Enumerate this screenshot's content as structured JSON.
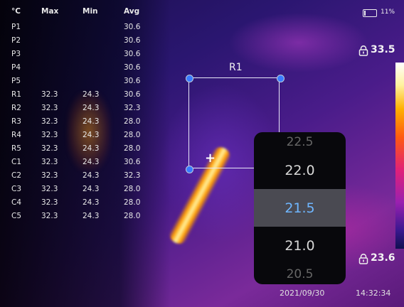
{
  "table": {
    "headers": [
      "°C",
      "Max",
      "Min",
      "Avg"
    ],
    "rows": [
      {
        "id": "P1",
        "max": "",
        "min": "",
        "avg": "30.6"
      },
      {
        "id": "P2",
        "max": "",
        "min": "",
        "avg": "30.6"
      },
      {
        "id": "P3",
        "max": "",
        "min": "",
        "avg": "30.6"
      },
      {
        "id": "P4",
        "max": "",
        "min": "",
        "avg": "30.6"
      },
      {
        "id": "P5",
        "max": "",
        "min": "",
        "avg": "30.6"
      },
      {
        "id": "R1",
        "max": "32.3",
        "min": "24.3",
        "avg": "30.6"
      },
      {
        "id": "R2",
        "max": "32.3",
        "min": "24.3",
        "avg": "32.3"
      },
      {
        "id": "R3",
        "max": "32.3",
        "min": "24.3",
        "avg": "28.0"
      },
      {
        "id": "R4",
        "max": "32.3",
        "min": "24.3",
        "avg": "28.0"
      },
      {
        "id": "R5",
        "max": "32.3",
        "min": "24.3",
        "avg": "28.0"
      },
      {
        "id": "C1",
        "max": "32.3",
        "min": "24.3",
        "avg": "30.6"
      },
      {
        "id": "C2",
        "max": "32.3",
        "min": "24.3",
        "avg": "32.3"
      },
      {
        "id": "C3",
        "max": "32.3",
        "min": "24.3",
        "avg": "28.0"
      },
      {
        "id": "C4",
        "max": "32.3",
        "min": "24.3",
        "avg": "28.0"
      },
      {
        "id": "C5",
        "max": "32.3",
        "min": "24.3",
        "avg": "28.0"
      }
    ]
  },
  "roi": {
    "label": "R1"
  },
  "picker": {
    "items": [
      "22.5",
      "22.0",
      "21.5",
      "21.0",
      "20.5"
    ],
    "selected": "21.5"
  },
  "status": {
    "battery_label": "11%",
    "battery_level": 0.11,
    "temp_max": "33.5",
    "temp_min": "23.6"
  },
  "footer": {
    "date": "2021/09/30",
    "time": "14:32:34"
  },
  "icons": {
    "lock": "lock-icon",
    "battery": "battery-icon",
    "crosshair": "crosshair-icon"
  }
}
